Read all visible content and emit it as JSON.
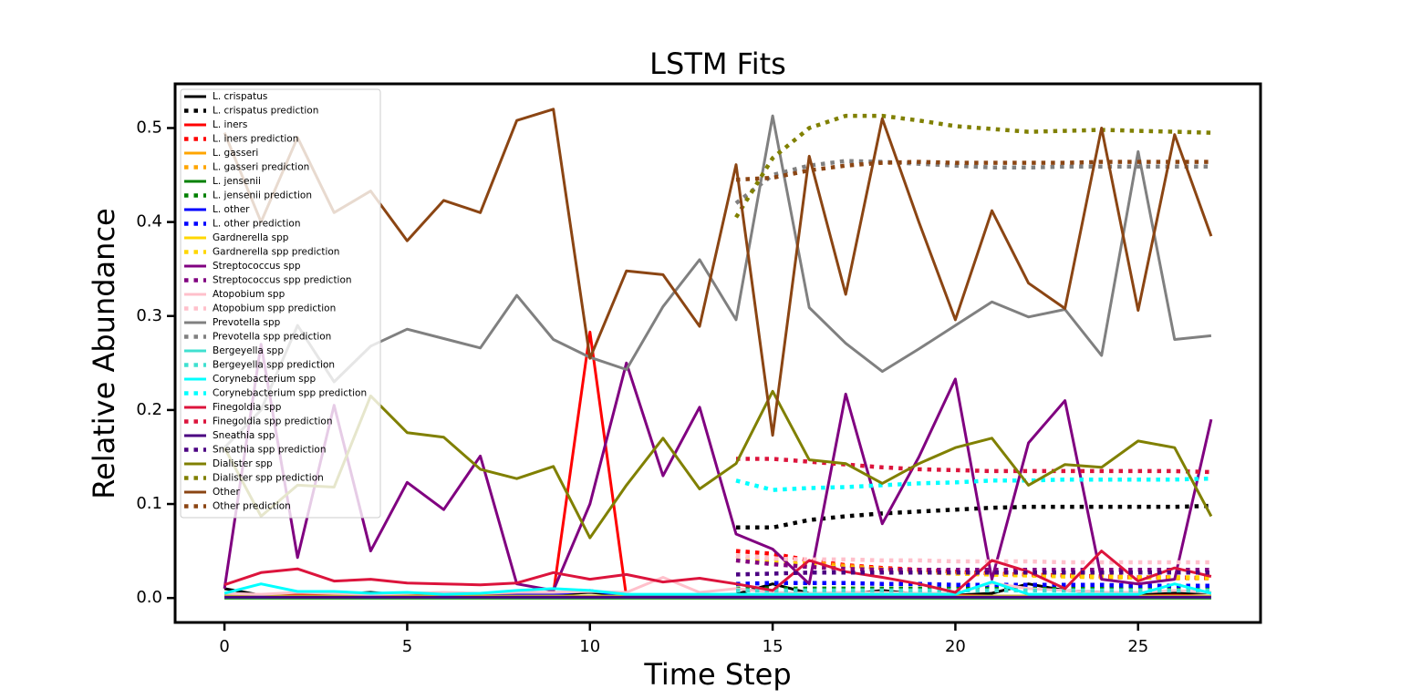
{
  "chart_data": {
    "type": "line",
    "title": "LSTM Fits",
    "xlabel": "Time Step",
    "ylabel": "Relative Abundance",
    "x": [
      0,
      1,
      2,
      3,
      4,
      5,
      6,
      7,
      8,
      9,
      10,
      11,
      12,
      13,
      14,
      15,
      16,
      17,
      18,
      19,
      20,
      21,
      22,
      23,
      24,
      25,
      26,
      27
    ],
    "xlim": [
      -1.35,
      28.35
    ],
    "xticks": [
      0,
      5,
      10,
      15,
      20,
      25
    ],
    "ylim": [
      -0.026,
      0.547
    ],
    "yticks": [
      {
        "value": 0,
        "label": "0.0"
      },
      0.1,
      0.2,
      0.3,
      0.4,
      0.5
    ],
    "legend": "upper left",
    "series": [
      {
        "name": "L. crispatus",
        "color": "#000000",
        "linestyle": "solid",
        "values": [
          0.01,
          0.003,
          0.005,
          0.004,
          0.006,
          0.003,
          0.004,
          0.003,
          0.005,
          0.004,
          0.006,
          0.003,
          0.002,
          0.003,
          0.004,
          0.015,
          0.005,
          0.004,
          0.008,
          0.004,
          0.003,
          0.005,
          0.015,
          0.008,
          0.006,
          0.004,
          0.005,
          0.006
        ]
      },
      {
        "name": "L. crispatus prediction",
        "color": "#000000",
        "linestyle": "dotted",
        "values": [
          null,
          null,
          null,
          null,
          null,
          null,
          null,
          null,
          null,
          null,
          null,
          null,
          null,
          null,
          0.075,
          0.075,
          0.083,
          0.087,
          0.09,
          0.092,
          0.094,
          0.096,
          0.097,
          0.097,
          0.097,
          0.097,
          0.097,
          0.098
        ]
      },
      {
        "name": "L. iners",
        "color": "#ff0000",
        "linestyle": "solid",
        "values": [
          0.004,
          0.003,
          0.004,
          0.003,
          0.003,
          0.004,
          0.003,
          0.004,
          0.005,
          0.005,
          0.283,
          0.001,
          0.002,
          0.002,
          0.003,
          0.003,
          0.002,
          0.003,
          0.002,
          0.002,
          0.003,
          0.002,
          0.002,
          0.003,
          0.002,
          0.002,
          0.003,
          0.002
        ]
      },
      {
        "name": "L. iners prediction",
        "color": "#ff0000",
        "linestyle": "dotted",
        "values": [
          null,
          null,
          null,
          null,
          null,
          null,
          null,
          null,
          null,
          null,
          null,
          null,
          null,
          null,
          0.05,
          0.047,
          0.04,
          0.035,
          0.032,
          0.03,
          0.028,
          0.026,
          0.025,
          0.024,
          0.023,
          0.022,
          0.022,
          0.021
        ]
      },
      {
        "name": "L. gasseri",
        "color": "#ffa500",
        "linestyle": "solid",
        "values": [
          0.001,
          0.001,
          0.001,
          0.001,
          0.001,
          0.001,
          0.001,
          0.001,
          0.001,
          0.001,
          0.001,
          0.001,
          0.001,
          0.001,
          0.001,
          0.001,
          0.001,
          0.001,
          0.001,
          0.001,
          0.001,
          0.001,
          0.001,
          0.001,
          0.001,
          0.001,
          0.001,
          0.001
        ]
      },
      {
        "name": "L. gasseri prediction",
        "color": "#ffa500",
        "linestyle": "dotted",
        "values": [
          null,
          null,
          null,
          null,
          null,
          null,
          null,
          null,
          null,
          null,
          null,
          null,
          null,
          null,
          0.045,
          0.042,
          0.038,
          0.034,
          0.031,
          0.028,
          0.026,
          0.025,
          0.024,
          0.023,
          0.022,
          0.022,
          0.021,
          0.021
        ]
      },
      {
        "name": "L. jensenii",
        "color": "#008000",
        "linestyle": "solid",
        "values": [
          0,
          0,
          0,
          0,
          0,
          0,
          0,
          0,
          0,
          0,
          0,
          0,
          0,
          0,
          0,
          0,
          0,
          0,
          0,
          0,
          0,
          0,
          0,
          0,
          0,
          0,
          0,
          0
        ]
      },
      {
        "name": "L. jensenii prediction",
        "color": "#008000",
        "linestyle": "dotted",
        "values": [
          null,
          null,
          null,
          null,
          null,
          null,
          null,
          null,
          null,
          null,
          null,
          null,
          null,
          null,
          0.01,
          0.01,
          0.01,
          0.01,
          0.01,
          0.01,
          0.01,
          0.01,
          0.01,
          0.01,
          0.01,
          0.01,
          0.01,
          0.01
        ]
      },
      {
        "name": "L. other",
        "color": "#0000ff",
        "linestyle": "solid",
        "values": [
          0.002,
          0.002,
          0.002,
          0.002,
          0.002,
          0.002,
          0.002,
          0.002,
          0.003,
          0.004,
          0.008,
          0.002,
          0.002,
          0.002,
          0.002,
          0.002,
          0.002,
          0.002,
          0.002,
          0.002,
          0.002,
          0.002,
          0.002,
          0.002,
          0.002,
          0.002,
          0.002,
          0.002
        ]
      },
      {
        "name": "L. other prediction",
        "color": "#0000ff",
        "linestyle": "dotted",
        "values": [
          null,
          null,
          null,
          null,
          null,
          null,
          null,
          null,
          null,
          null,
          null,
          null,
          null,
          null,
          0.015,
          0.016,
          0.016,
          0.016,
          0.015,
          0.015,
          0.014,
          0.014,
          0.014,
          0.014,
          0.014,
          0.013,
          0.013,
          0.013
        ]
      },
      {
        "name": "Gardnerella spp",
        "color": "#ffd700",
        "linestyle": "solid",
        "values": [
          0.002,
          0.002,
          0.002,
          0.002,
          0.002,
          0.002,
          0.002,
          0.002,
          0.002,
          0.002,
          0.002,
          0.002,
          0.002,
          0.002,
          0.002,
          0.002,
          0.002,
          0.002,
          0.002,
          0.002,
          0.002,
          0.002,
          0.002,
          0.002,
          0.002,
          0.002,
          0.002,
          0.002
        ]
      },
      {
        "name": "Gardnerella spp prediction",
        "color": "#ffd700",
        "linestyle": "dotted",
        "values": [
          null,
          null,
          null,
          null,
          null,
          null,
          null,
          null,
          null,
          null,
          null,
          null,
          null,
          null,
          0.04,
          0.038,
          0.035,
          0.032,
          0.03,
          0.028,
          0.026,
          0.025,
          0.024,
          0.023,
          0.023,
          0.022,
          0.022,
          0.022
        ]
      },
      {
        "name": "Streptococcus spp",
        "color": "#800080",
        "linestyle": "solid",
        "values": [
          0.01,
          0.27,
          0.043,
          0.205,
          0.05,
          0.123,
          0.094,
          0.151,
          0.015,
          0.008,
          0.1,
          0.25,
          0.13,
          0.203,
          0.068,
          0.052,
          0.015,
          0.217,
          0.079,
          0.15,
          0.233,
          0.02,
          0.165,
          0.21,
          0.02,
          0.015,
          0.02,
          0.19
        ]
      },
      {
        "name": "Streptococcus spp prediction",
        "color": "#800080",
        "linestyle": "dotted",
        "values": [
          null,
          null,
          null,
          null,
          null,
          null,
          null,
          null,
          null,
          null,
          null,
          null,
          null,
          null,
          0.04,
          0.036,
          0.033,
          0.031,
          0.03,
          0.03,
          0.03,
          0.03,
          0.03,
          0.03,
          0.03,
          0.03,
          0.03,
          0.03
        ]
      },
      {
        "name": "Atopobium spp",
        "color": "#ffc0cb",
        "linestyle": "solid",
        "values": [
          0.005,
          0.004,
          0.006,
          0.005,
          0.004,
          0.005,
          0.006,
          0.005,
          0.006,
          0.006,
          0.007,
          0.006,
          0.022,
          0.006,
          0.01,
          0.006,
          0.005,
          0.006,
          0.006,
          0.005,
          0.005,
          0.016,
          0.01,
          0.008,
          0.006,
          0.006,
          0.008,
          0.006
        ]
      },
      {
        "name": "Atopobium spp prediction",
        "color": "#ffc0cb",
        "linestyle": "dotted",
        "values": [
          null,
          null,
          null,
          null,
          null,
          null,
          null,
          null,
          null,
          null,
          null,
          null,
          null,
          null,
          0.045,
          0.042,
          0.041,
          0.041,
          0.04,
          0.04,
          0.039,
          0.039,
          0.039,
          0.038,
          0.038,
          0.038,
          0.038,
          0.038
        ]
      },
      {
        "name": "Prevotella spp",
        "color": "#808080",
        "linestyle": "solid",
        "values": [
          0.16,
          0.2,
          0.29,
          0.23,
          0.268,
          0.286,
          0.276,
          0.266,
          0.322,
          0.275,
          0.256,
          0.243,
          0.31,
          0.36,
          0.296,
          0.513,
          0.309,
          0.271,
          0.241,
          0.265,
          0.29,
          0.315,
          0.299,
          0.307,
          0.258,
          0.475,
          0.275,
          0.279
        ]
      },
      {
        "name": "Prevotella spp prediction",
        "color": "#808080",
        "linestyle": "dotted",
        "values": [
          null,
          null,
          null,
          null,
          null,
          null,
          null,
          null,
          null,
          null,
          null,
          null,
          null,
          null,
          0.42,
          0.45,
          0.46,
          0.465,
          0.464,
          0.462,
          0.46,
          0.458,
          0.458,
          0.459,
          0.459,
          0.459,
          0.459,
          0.459
        ]
      },
      {
        "name": "Bergeyella spp",
        "color": "#40e0d0",
        "linestyle": "solid",
        "values": [
          0.001,
          0.001,
          0.001,
          0.001,
          0.001,
          0.001,
          0.001,
          0.001,
          0.001,
          0.001,
          0.001,
          0.001,
          0.001,
          0.001,
          0.001,
          0.001,
          0.001,
          0.001,
          0.001,
          0.001,
          0.001,
          0.001,
          0.001,
          0.001,
          0.001,
          0.001,
          0.001,
          0.001
        ]
      },
      {
        "name": "Bergeyella spp prediction",
        "color": "#40e0d0",
        "linestyle": "dotted",
        "values": [
          null,
          null,
          null,
          null,
          null,
          null,
          null,
          null,
          null,
          null,
          null,
          null,
          null,
          null,
          0.008,
          0.008,
          0.008,
          0.008,
          0.008,
          0.008,
          0.008,
          0.008,
          0.008,
          0.008,
          0.008,
          0.008,
          0.008,
          0.008
        ]
      },
      {
        "name": "Corynebacterium spp",
        "color": "#00ffff",
        "linestyle": "solid",
        "values": [
          0.005,
          0.015,
          0.007,
          0.007,
          0.005,
          0.006,
          0.004,
          0.005,
          0.008,
          0.01,
          0.008,
          0.004,
          0.004,
          0.004,
          0.004,
          0.004,
          0.004,
          0.004,
          0.004,
          0.004,
          0.004,
          0.017,
          0.004,
          0.004,
          0.004,
          0.004,
          0.015,
          0.005
        ]
      },
      {
        "name": "Corynebacterium spp prediction",
        "color": "#00ffff",
        "linestyle": "dotted",
        "values": [
          null,
          null,
          null,
          null,
          null,
          null,
          null,
          null,
          null,
          null,
          null,
          null,
          null,
          null,
          0.125,
          0.115,
          0.117,
          0.118,
          0.12,
          0.122,
          0.123,
          0.125,
          0.125,
          0.126,
          0.126,
          0.126,
          0.126,
          0.127
        ]
      },
      {
        "name": "Finegoldia spp",
        "color": "#dc143c",
        "linestyle": "solid",
        "values": [
          0.014,
          0.027,
          0.031,
          0.018,
          0.02,
          0.016,
          0.015,
          0.014,
          0.016,
          0.027,
          0.02,
          0.025,
          0.017,
          0.021,
          0.015,
          0.008,
          0.04,
          0.028,
          0.022,
          0.015,
          0.006,
          0.04,
          0.028,
          0.01,
          0.05,
          0.018,
          0.032,
          0.023
        ]
      },
      {
        "name": "Finegoldia spp prediction",
        "color": "#dc143c",
        "linestyle": "dotted",
        "values": [
          null,
          null,
          null,
          null,
          null,
          null,
          null,
          null,
          null,
          null,
          null,
          null,
          null,
          null,
          0.148,
          0.148,
          0.145,
          0.142,
          0.139,
          0.137,
          0.136,
          0.135,
          0.135,
          0.135,
          0.135,
          0.135,
          0.135,
          0.134
        ]
      },
      {
        "name": "Sneathia spp",
        "color": "#4b0082",
        "linestyle": "solid",
        "values": [
          0.001,
          0.001,
          0.001,
          0.001,
          0.001,
          0.001,
          0.001,
          0.001,
          0.001,
          0.001,
          0.001,
          0.001,
          0.001,
          0.001,
          0.001,
          0.001,
          0.001,
          0.001,
          0.001,
          0.001,
          0.001,
          0.001,
          0.001,
          0.001,
          0.001,
          0.001,
          0.001,
          0.001
        ]
      },
      {
        "name": "Sneathia spp prediction",
        "color": "#4b0082",
        "linestyle": "dotted",
        "values": [
          null,
          null,
          null,
          null,
          null,
          null,
          null,
          null,
          null,
          null,
          null,
          null,
          null,
          null,
          0.025,
          0.026,
          0.027,
          0.027,
          0.027,
          0.027,
          0.027,
          0.027,
          0.027,
          0.027,
          0.027,
          0.027,
          0.027,
          0.027
        ]
      },
      {
        "name": "Dialister spp",
        "color": "#808000",
        "linestyle": "solid",
        "values": [
          0.16,
          0.087,
          0.12,
          0.118,
          0.215,
          0.176,
          0.171,
          0.137,
          0.127,
          0.14,
          0.064,
          0.12,
          0.17,
          0.116,
          0.143,
          0.22,
          0.147,
          0.143,
          0.122,
          0.143,
          0.16,
          0.17,
          0.12,
          0.142,
          0.139,
          0.167,
          0.16,
          0.087
        ]
      },
      {
        "name": "Dialister spp prediction",
        "color": "#808000",
        "linestyle": "dotted",
        "values": [
          null,
          null,
          null,
          null,
          null,
          null,
          null,
          null,
          null,
          null,
          null,
          null,
          null,
          null,
          0.405,
          0.468,
          0.5,
          0.513,
          0.513,
          0.508,
          0.502,
          0.499,
          0.496,
          0.497,
          0.498,
          0.497,
          0.496,
          0.495
        ]
      },
      {
        "name": "Other",
        "color": "#8b4513",
        "linestyle": "solid",
        "values": [
          0.495,
          0.4,
          0.49,
          0.41,
          0.433,
          0.38,
          0.423,
          0.41,
          0.508,
          0.52,
          0.255,
          0.348,
          0.344,
          0.289,
          0.461,
          0.173,
          0.47,
          0.323,
          0.51,
          0.4,
          0.296,
          0.412,
          0.335,
          0.308,
          0.5,
          0.306,
          0.493,
          0.385
        ]
      },
      {
        "name": "Other prediction",
        "color": "#8b4513",
        "linestyle": "dotted",
        "values": [
          null,
          null,
          null,
          null,
          null,
          null,
          null,
          null,
          null,
          null,
          null,
          null,
          null,
          null,
          0.445,
          0.447,
          0.455,
          0.46,
          0.463,
          0.464,
          0.463,
          0.463,
          0.463,
          0.463,
          0.464,
          0.464,
          0.464,
          0.464
        ]
      }
    ]
  }
}
